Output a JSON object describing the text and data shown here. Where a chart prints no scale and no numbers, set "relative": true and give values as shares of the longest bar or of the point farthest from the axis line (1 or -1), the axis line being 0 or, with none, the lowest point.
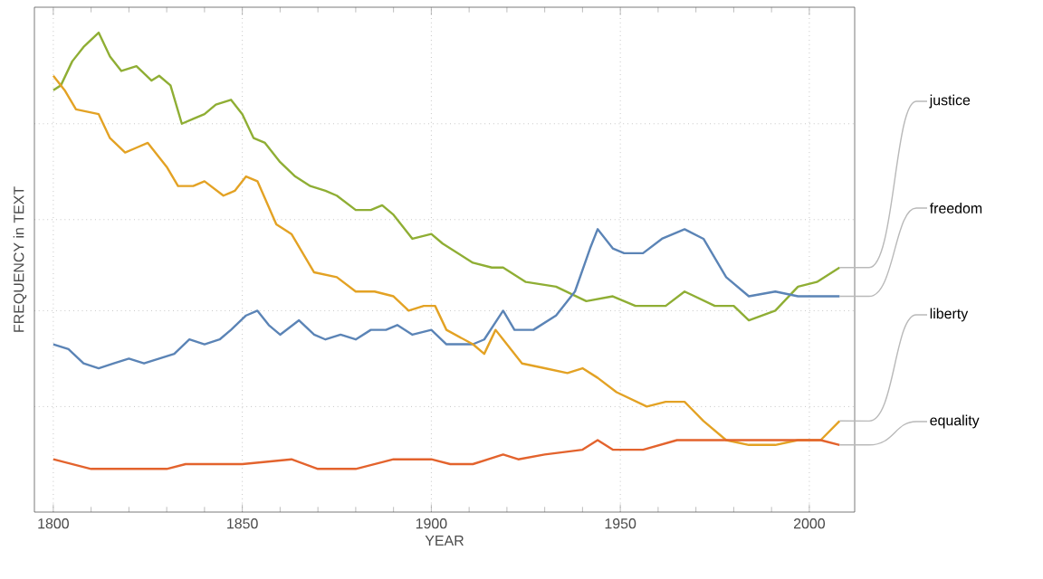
{
  "chart_data": {
    "type": "line",
    "relative": true,
    "xlabel": "YEAR",
    "ylabel": "FREQUENCY in TEXT",
    "xlim": [
      1795,
      2012
    ],
    "xticks": [
      1800,
      1850,
      1900,
      1950,
      2000
    ],
    "grid": true,
    "line_style": "solid",
    "marker": "none",
    "series": [
      {
        "name": "justice",
        "color": "#8fae34",
        "x": [
          1800,
          1802,
          1805,
          1808,
          1812,
          1815,
          1818,
          1822,
          1826,
          1828,
          1831,
          1834,
          1837,
          1840,
          1843,
          1847,
          1850,
          1853,
          1856,
          1860,
          1864,
          1868,
          1872,
          1875,
          1880,
          1884,
          1887,
          1890,
          1895,
          1900,
          1903,
          1911,
          1916,
          1919,
          1925,
          1933,
          1941,
          1948,
          1954,
          1962,
          1967,
          1975,
          1980,
          1984,
          1991,
          1997,
          2002,
          2008
        ],
        "values": [
          0.88,
          0.89,
          0.94,
          0.97,
          1.0,
          0.95,
          0.92,
          0.93,
          0.9,
          0.91,
          0.89,
          0.81,
          0.82,
          0.83,
          0.85,
          0.86,
          0.83,
          0.78,
          0.77,
          0.73,
          0.7,
          0.68,
          0.67,
          0.66,
          0.63,
          0.63,
          0.64,
          0.62,
          0.57,
          0.58,
          0.56,
          0.52,
          0.51,
          0.51,
          0.48,
          0.47,
          0.44,
          0.45,
          0.43,
          0.43,
          0.46,
          0.43,
          0.43,
          0.4,
          0.42,
          0.47,
          0.48,
          0.51
        ]
      },
      {
        "name": "freedom",
        "color": "#5b84b6",
        "x": [
          1800,
          1804,
          1808,
          1812,
          1816,
          1820,
          1824,
          1828,
          1832,
          1836,
          1840,
          1844,
          1847,
          1851,
          1854,
          1857,
          1860,
          1865,
          1869,
          1872,
          1876,
          1880,
          1884,
          1888,
          1891,
          1895,
          1900,
          1904,
          1911,
          1914,
          1919,
          1922,
          1927,
          1933,
          1938,
          1942,
          1944,
          1948,
          1951,
          1956,
          1961,
          1967,
          1972,
          1978,
          1984,
          1991,
          1997,
          2003,
          2008
        ],
        "values": [
          0.35,
          0.34,
          0.31,
          0.3,
          0.31,
          0.32,
          0.31,
          0.32,
          0.33,
          0.36,
          0.35,
          0.36,
          0.38,
          0.41,
          0.42,
          0.39,
          0.37,
          0.4,
          0.37,
          0.36,
          0.37,
          0.36,
          0.38,
          0.38,
          0.39,
          0.37,
          0.38,
          0.35,
          0.35,
          0.36,
          0.42,
          0.38,
          0.38,
          0.41,
          0.46,
          0.55,
          0.59,
          0.55,
          0.54,
          0.54,
          0.57,
          0.59,
          0.57,
          0.49,
          0.45,
          0.46,
          0.45,
          0.45,
          0.45
        ]
      },
      {
        "name": "liberty",
        "color": "#e3a224",
        "x": [
          1800,
          1803,
          1806,
          1812,
          1815,
          1819,
          1822,
          1825,
          1830,
          1833,
          1837,
          1840,
          1845,
          1848,
          1851,
          1854,
          1859,
          1863,
          1869,
          1875,
          1880,
          1885,
          1890,
          1894,
          1898,
          1901,
          1904,
          1911,
          1914,
          1917,
          1919,
          1924,
          1930,
          1936,
          1940,
          1944,
          1949,
          1957,
          1962,
          1967,
          1972,
          1978,
          1984,
          1991,
          1997,
          2003,
          2008
        ],
        "values": [
          0.91,
          0.88,
          0.84,
          0.83,
          0.78,
          0.75,
          0.76,
          0.77,
          0.72,
          0.68,
          0.68,
          0.69,
          0.66,
          0.67,
          0.7,
          0.69,
          0.6,
          0.58,
          0.5,
          0.49,
          0.46,
          0.46,
          0.45,
          0.42,
          0.43,
          0.43,
          0.38,
          0.35,
          0.33,
          0.38,
          0.36,
          0.31,
          0.3,
          0.29,
          0.3,
          0.28,
          0.25,
          0.22,
          0.23,
          0.23,
          0.19,
          0.15,
          0.14,
          0.14,
          0.15,
          0.15,
          0.19
        ]
      },
      {
        "name": "equality",
        "color": "#e3632d",
        "x": [
          1800,
          1805,
          1810,
          1815,
          1820,
          1830,
          1835,
          1840,
          1850,
          1863,
          1870,
          1880,
          1890,
          1900,
          1905,
          1911,
          1919,
          1923,
          1930,
          1940,
          1944,
          1948,
          1956,
          1965,
          1978,
          1991,
          1997,
          2003,
          2008
        ],
        "values": [
          0.11,
          0.1,
          0.09,
          0.09,
          0.09,
          0.09,
          0.1,
          0.1,
          0.1,
          0.11,
          0.09,
          0.09,
          0.11,
          0.11,
          0.1,
          0.1,
          0.12,
          0.11,
          0.12,
          0.13,
          0.15,
          0.13,
          0.13,
          0.15,
          0.15,
          0.15,
          0.15,
          0.15,
          0.14
        ]
      }
    ]
  }
}
